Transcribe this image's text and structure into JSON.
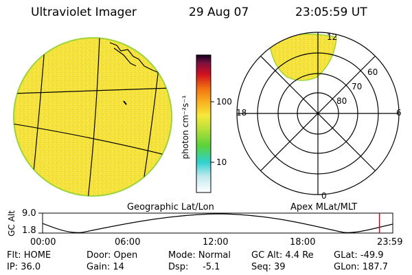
{
  "header": {
    "instrument": "Ultraviolet Imager",
    "date": "29 Aug 07",
    "time": "23:05:59 UT"
  },
  "colorbar": {
    "unit_label": "photon cm⁻²s⁻¹",
    "tick_labels": [
      "100",
      "10"
    ]
  },
  "polar_plot": {
    "mlt_labels": {
      "top": "12",
      "left": "18",
      "right": "6",
      "bottom": "0"
    },
    "mlat_labels": [
      "60",
      "70",
      "80"
    ],
    "caption": "Apex MLat/MLT"
  },
  "geo_plot": {
    "caption": "Geographic Lat/Lon"
  },
  "altitude_plot": {
    "ylabel": "GC Alt",
    "y_ticks": [
      "9.0",
      "1.8"
    ],
    "x_ticks": [
      "00:00",
      "06:00",
      "12:00",
      "18:00",
      "23:59"
    ],
    "current_time_fraction": 0.962
  },
  "footer": {
    "flt": "Flt: HOME",
    "ip": "IP: 36.0",
    "door": "Door: Open",
    "gain": "Gain: 14",
    "mode": "Mode: Normal",
    "dsp": "Dsp:     -5.1",
    "gc_alt": "GC Alt: 4.4 Re",
    "seq": "Seq: 39",
    "glat": "GLat: -49.9",
    "glon": "GLon: 187.7"
  },
  "colors": {
    "disk_fill": "#f4e23a",
    "disk_edge": "#9bd43a",
    "marker_line": "#d0021b"
  }
}
